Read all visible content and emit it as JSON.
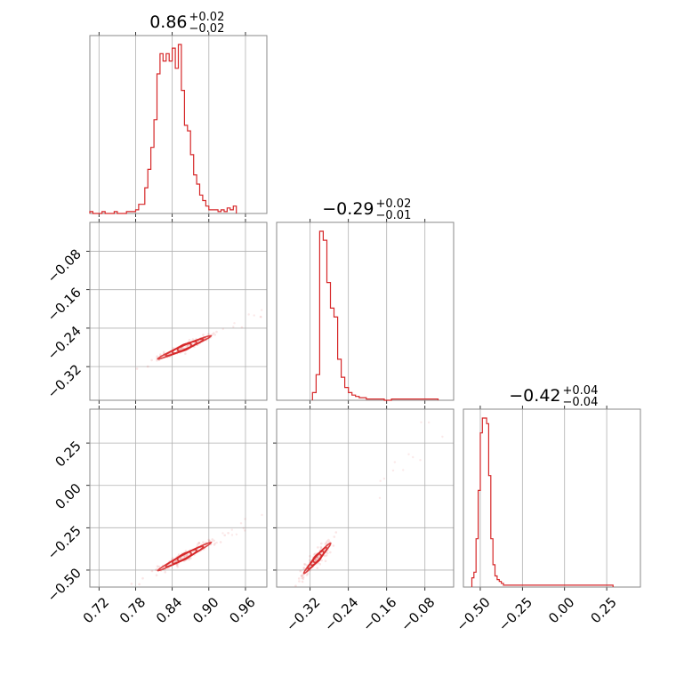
{
  "chart_data": {
    "type": "corner",
    "color": "#d62728",
    "parameters": [
      {
        "range": [
          0.705,
          0.995
        ],
        "ticks": [
          0.72,
          0.78,
          0.84,
          0.9,
          0.96
        ],
        "tick_labels": [
          "0.72",
          "0.78",
          "0.84",
          "0.90",
          "0.96"
        ],
        "title_value": "0.86",
        "title_plus": "+0.02",
        "title_minus": "−0.02",
        "hist": {
          "start": 0.705,
          "width": 0.005,
          "counts": [
            1,
            0,
            0,
            0,
            1,
            0,
            0,
            0,
            1,
            0,
            0,
            0,
            1,
            1,
            1,
            2,
            5,
            5,
            14,
            24,
            36,
            51,
            76,
            87,
            83,
            87,
            83,
            90,
            79,
            92,
            67,
            48,
            45,
            32,
            21,
            16,
            10,
            7,
            4,
            2,
            2,
            2,
            1,
            2,
            1,
            3,
            2,
            4
          ]
        }
      },
      {
        "range": [
          -0.39,
          -0.02
        ],
        "ticks": [
          -0.32,
          -0.24,
          -0.16,
          -0.08
        ],
        "tick_labels": [
          "−0.32",
          "−0.24",
          "−0.16",
          "−0.08"
        ],
        "title_value": "−0.29",
        "title_plus": "+0.02",
        "title_minus": "−0.01",
        "hist": {
          "start": -0.315,
          "width": 0.0075,
          "counts": [
            6,
            20,
            132,
            125,
            92,
            72,
            65,
            32,
            18,
            10,
            6,
            4,
            3,
            2,
            2,
            1,
            1,
            1,
            1,
            1,
            0,
            0,
            1,
            1,
            1,
            1,
            1,
            1,
            1,
            1,
            1,
            1,
            1,
            1,
            1
          ]
        }
      },
      {
        "range": [
          -0.6,
          0.45
        ],
        "ticks": [
          -0.5,
          -0.25,
          0.0,
          0.25
        ],
        "tick_labels": [
          "−0.50",
          "−0.25",
          "0.00",
          "0.25"
        ],
        "title_value": "−0.42",
        "title_plus": "+0.04",
        "title_minus": "−0.04",
        "hist": {
          "start": -0.55,
          "width": 0.0125,
          "counts": [
            5,
            8,
            26,
            52,
            83,
            91,
            91,
            88,
            60,
            26,
            12,
            6,
            4,
            3,
            2,
            1,
            1,
            1,
            1,
            1,
            1,
            1,
            1,
            1,
            1,
            1,
            1,
            1,
            1,
            1,
            1,
            1,
            1,
            1,
            1,
            1,
            1,
            1,
            1,
            1,
            1,
            1,
            1,
            1,
            1,
            1,
            1,
            1,
            1,
            1,
            1,
            1,
            1,
            1,
            1,
            1,
            1,
            1,
            1,
            1,
            1,
            1,
            1,
            1,
            1,
            1,
            1
          ]
        }
      }
    ],
    "y_tick_labels": {
      "row1": {
        "ticks": [
          -0.08,
          -0.16,
          -0.24,
          -0.32
        ],
        "labels": [
          "−0.08",
          "−0.16",
          "−0.24",
          "−0.32"
        ]
      },
      "row2": {
        "ticks": [
          0.25,
          0.0,
          -0.25,
          -0.5
        ],
        "labels": [
          "0.25",
          "0.00",
          "−0.25",
          "−0.50"
        ]
      }
    },
    "grid": true
  }
}
